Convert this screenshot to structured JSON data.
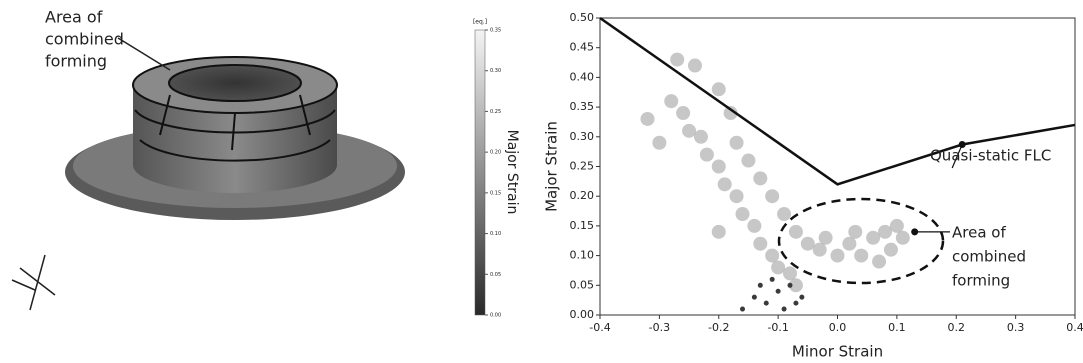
{
  "chart_data": [
    {
      "type": "colorbar",
      "annotation": [
        "Area of",
        "combined",
        "forming"
      ],
      "label": "Major Strain",
      "unit": "[eq.]",
      "ylim": [
        0,
        0.35
      ],
      "yticks": [
        {
          "value": 0,
          "label": "0.00"
        },
        0.05,
        {
          "value": 0.1,
          "label": "0.10"
        },
        0.15,
        {
          "value": 0.2,
          "label": "0.20"
        },
        0.25,
        {
          "value": 0.3,
          "label": "0.30"
        },
        0.35
      ],
      "colors": [
        "#2a2a2a",
        "#f4f4f4"
      ]
    },
    {
      "type": "scatter",
      "xlabel": "Minor Strain",
      "ylabel": "Major Strain",
      "xlim": [
        -0.4,
        0.4
      ],
      "ylim": [
        0,
        0.5
      ],
      "xticks": [
        -0.4,
        -0.3,
        -0.2,
        -0.1,
        {
          "value": 0,
          "label": "0.0"
        },
        0.1,
        0.2,
        0.3,
        0.4
      ],
      "yticks": [
        {
          "value": 0,
          "label": "0.00"
        },
        0.05,
        {
          "value": 0.1,
          "label": "0.10"
        },
        0.15,
        {
          "value": 0.2,
          "label": "0.20"
        },
        0.25,
        {
          "value": 0.3,
          "label": "0.30"
        },
        0.35,
        {
          "value": 0.4,
          "label": "0.40"
        },
        0.45,
        {
          "value": 0.5,
          "label": "0.50"
        }
      ],
      "point_sets": [
        {
          "color": "#b4b4b4",
          "x": [
            -0.28,
            -0.26,
            -0.25,
            -0.23,
            -0.22,
            -0.2,
            -0.19,
            -0.17,
            -0.16,
            -0.14,
            -0.13,
            -0.11,
            -0.1,
            -0.08,
            -0.07,
            -0.17,
            -0.15,
            -0.13,
            -0.11,
            -0.09,
            -0.07,
            -0.05,
            -0.03,
            0,
            0.02,
            0.04,
            0.06,
            0.08,
            0.1,
            0.11,
            0.03,
            -0.02,
            0.07,
            0.09,
            -0.32,
            -0.27,
            -0.24,
            -0.18,
            -0.2,
            -0.2,
            -0.3
          ],
          "y": [
            0.36,
            0.34,
            0.31,
            0.3,
            0.27,
            0.25,
            0.22,
            0.2,
            0.17,
            0.15,
            0.12,
            0.1,
            0.08,
            0.07,
            0.05,
            0.29,
            0.26,
            0.23,
            0.2,
            0.17,
            0.14,
            0.12,
            0.11,
            0.1,
            0.12,
            0.1,
            0.13,
            0.14,
            0.15,
            0.13,
            0.14,
            0.13,
            0.09,
            0.11,
            0.33,
            0.43,
            0.42,
            0.34,
            0.38,
            0.14,
            0.29
          ]
        },
        {
          "color": "#3a3a3a",
          "x": [
            -0.14,
            -0.12,
            -0.1,
            -0.09,
            -0.11,
            -0.07,
            -0.13,
            -0.06,
            -0.16,
            -0.08
          ],
          "y": [
            0.03,
            0.02,
            0.04,
            0.01,
            0.06,
            0.02,
            0.05,
            0.03,
            0.01,
            0.05
          ]
        }
      ],
      "flc": {
        "color": "#111111",
        "x": [
          -0.4,
          0,
          0.21,
          0.4
        ],
        "y": [
          0.5,
          0.22,
          0.287,
          0.32
        ]
      },
      "flc_label": "Quasi-static FLC",
      "flc_point": [
        0.21,
        0.287
      ],
      "region_label": [
        "Area of",
        "combined",
        "forming"
      ],
      "region_point": [
        0.13,
        0.14
      ]
    }
  ]
}
